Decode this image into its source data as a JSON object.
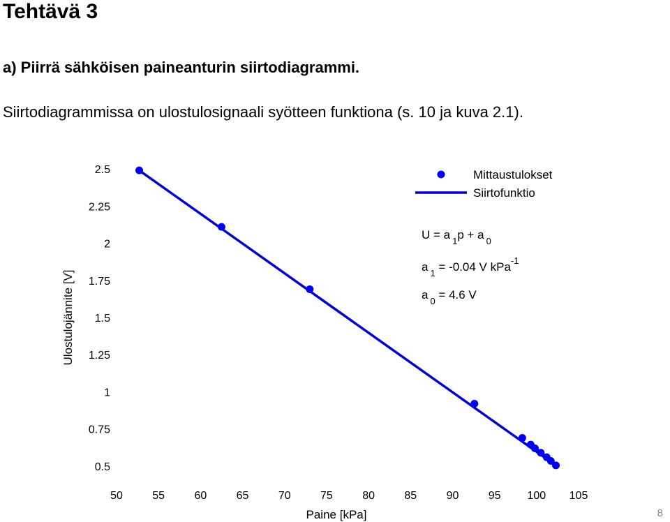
{
  "slide": {
    "title": "Tehtävä 3",
    "task": "a) Piirrä sähköisen paineanturin siirtodiagrammi.",
    "text": "Siirtodiagrammissa on ulostulosignaali syötteen funktiona (s. 10 ja kuva 2.1).",
    "page_number": "8"
  },
  "chart_data": {
    "type": "line",
    "x_label": "Paine [kPa]",
    "y_label": "Ulostulojännite [V]",
    "xlim": [
      50,
      105
    ],
    "ylim": [
      0.42,
      2.58
    ],
    "xticks": [
      50,
      55,
      60,
      65,
      70,
      75,
      80,
      85,
      90,
      95,
      100,
      105
    ],
    "yticks": [
      0.5,
      0.75,
      1,
      1.25,
      1.5,
      1.75,
      2,
      2.25,
      2.5
    ],
    "legend": "upper right",
    "series": [
      {
        "name": "Mittaustulokset",
        "color": "#0000ee",
        "style": "markers",
        "x": [
          52.7,
          62.5,
          73.0,
          92.6,
          98.3,
          99.3,
          99.8,
          100.5,
          101.2,
          101.7,
          102.3
        ],
        "values": [
          2.49,
          2.11,
          1.69,
          0.92,
          0.69,
          0.645,
          0.62,
          0.59,
          0.56,
          0.535,
          0.505
        ]
      },
      {
        "name": "Siirtofunktio",
        "color": "#0000cc",
        "style": "line",
        "x": [
          52.7,
          102.3
        ],
        "values": [
          2.49,
          0.505
        ]
      }
    ],
    "annotations": [
      [
        {
          "text": "U = a"
        },
        {
          "sub": "1"
        },
        {
          "text": "p + a"
        },
        {
          "sub": "0"
        }
      ],
      [
        {
          "text": "a"
        },
        {
          "sub": "1"
        },
        {
          "text": " = -0.04 V kPa"
        },
        {
          "sup": "-1"
        }
      ],
      [
        {
          "text": "a"
        },
        {
          "sub": "0"
        },
        {
          "text": " = 4.6 V"
        }
      ]
    ]
  }
}
